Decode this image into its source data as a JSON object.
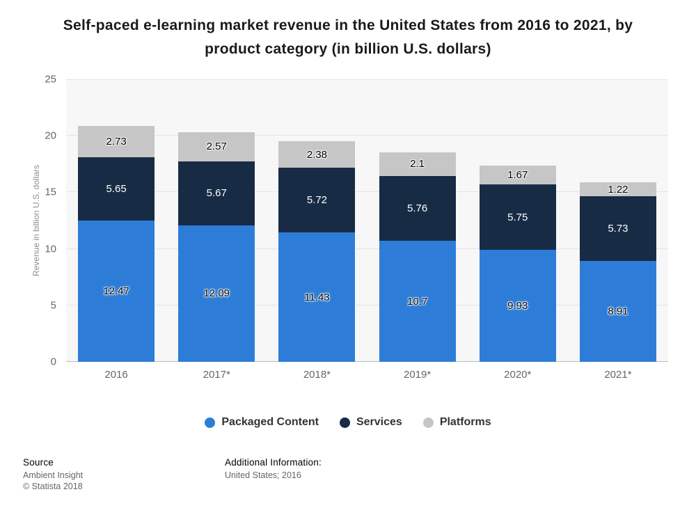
{
  "title": "Self-paced e-learning market revenue in the United States from 2016 to 2021, by product category (in billion U.S. dollars)",
  "chart_data": {
    "type": "bar",
    "stacked": true,
    "title": "Self-paced e-learning market revenue in the United States from 2016 to 2021, by product category (in billion U.S. dollars)",
    "categories": [
      "2016",
      "2017*",
      "2018*",
      "2019*",
      "2020*",
      "2021*"
    ],
    "series": [
      {
        "name": "Packaged Content",
        "color": "#2d7dd8",
        "label_color": "#000000",
        "label_halo": true,
        "values": [
          12.47,
          12.09,
          11.43,
          10.7,
          9.93,
          8.91
        ]
      },
      {
        "name": "Services",
        "color": "#182b45",
        "label_color": "#ffffff",
        "label_halo": false,
        "values": [
          5.65,
          5.67,
          5.72,
          5.76,
          5.75,
          5.73
        ]
      },
      {
        "name": "Platforms",
        "color": "#c6c6c6",
        "label_color": "#000000",
        "label_halo": true,
        "values": [
          2.73,
          2.57,
          2.38,
          2.1,
          1.67,
          1.22
        ]
      }
    ],
    "xlabel": "",
    "ylabel": "Revenue in billion U.S. dollars",
    "ylim": [
      0,
      25
    ],
    "yticks": [
      0,
      5,
      10,
      15,
      20,
      25
    ],
    "grid": true,
    "plot_background": "#f7f7f7",
    "legend_position": "bottom"
  },
  "footer": {
    "source_label": "Source",
    "source_lines": [
      "Ambient Insight",
      "© Statista 2018"
    ],
    "additional_label": "Additional Information:",
    "additional_lines": [
      "United States; 2016"
    ]
  }
}
